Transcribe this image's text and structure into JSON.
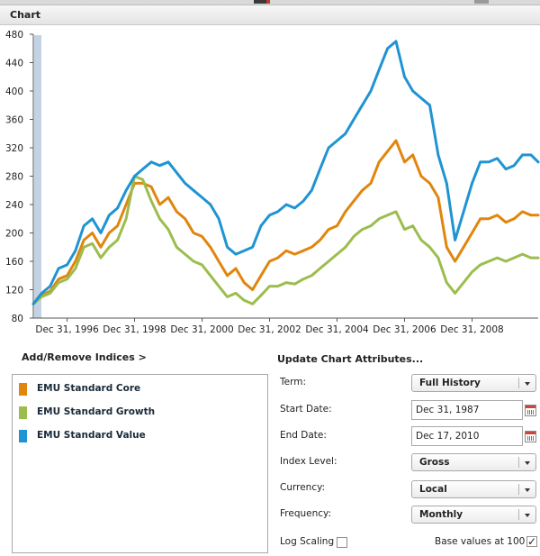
{
  "panel": {
    "title": "Chart"
  },
  "chart_data": {
    "type": "line",
    "ylim": [
      80,
      480
    ],
    "yticks": [
      80,
      120,
      160,
      200,
      240,
      280,
      320,
      360,
      400,
      440,
      480
    ],
    "xlim": [
      "1995-12-31",
      "2010-12-17"
    ],
    "xticks": [
      "Dec 31, 1996",
      "Dec 31, 1998",
      "Dec 31, 2000",
      "Dec 31, 2002",
      "Dec 31, 2004",
      "Dec 31, 2006",
      "Dec 31, 2008"
    ],
    "xtick_dates": [
      "1996-12-31",
      "1998-12-31",
      "2000-12-31",
      "2002-12-31",
      "2004-12-31",
      "2006-12-31",
      "2008-12-31"
    ],
    "grid": false,
    "dates": [
      "1995-12-31",
      "1996-03-31",
      "1996-06-30",
      "1996-09-30",
      "1996-12-31",
      "1997-03-31",
      "1997-06-30",
      "1997-09-30",
      "1997-12-31",
      "1998-03-31",
      "1998-06-30",
      "1998-09-30",
      "1998-12-31",
      "1999-03-31",
      "1999-06-30",
      "1999-09-30",
      "1999-12-31",
      "2000-03-31",
      "2000-06-30",
      "2000-09-30",
      "2000-12-31",
      "2001-03-31",
      "2001-06-30",
      "2001-09-30",
      "2001-12-31",
      "2002-03-31",
      "2002-06-30",
      "2002-09-30",
      "2002-12-31",
      "2003-03-31",
      "2003-06-30",
      "2003-09-30",
      "2003-12-31",
      "2004-03-31",
      "2004-06-30",
      "2004-09-30",
      "2004-12-31",
      "2005-03-31",
      "2005-06-30",
      "2005-09-30",
      "2005-12-31",
      "2006-03-31",
      "2006-06-30",
      "2006-09-30",
      "2006-12-31",
      "2007-03-31",
      "2007-06-30",
      "2007-09-30",
      "2007-12-31",
      "2008-03-31",
      "2008-06-30",
      "2008-09-30",
      "2008-12-31",
      "2009-03-31",
      "2009-06-30",
      "2009-09-30",
      "2009-12-31",
      "2010-03-31",
      "2010-06-30",
      "2010-09-30",
      "2010-12-17"
    ],
    "series": [
      {
        "name": "EMU Standard Core",
        "color": "#e0860e",
        "values": [
          100,
          112,
          118,
          135,
          140,
          160,
          190,
          200,
          180,
          200,
          210,
          240,
          270,
          270,
          265,
          240,
          250,
          230,
          220,
          200,
          195,
          180,
          160,
          140,
          150,
          130,
          120,
          140,
          160,
          165,
          175,
          170,
          175,
          180,
          190,
          205,
          210,
          230,
          245,
          260,
          270,
          300,
          315,
          330,
          300,
          310,
          280,
          270,
          250,
          180,
          160,
          180,
          200,
          220,
          220,
          225,
          215,
          220,
          230,
          225,
          225
        ]
      },
      {
        "name": "EMU Standard Growth",
        "color": "#9cbd4e",
        "values": [
          100,
          110,
          115,
          130,
          135,
          150,
          180,
          185,
          165,
          180,
          190,
          220,
          280,
          275,
          245,
          220,
          205,
          180,
          170,
          160,
          155,
          140,
          125,
          110,
          115,
          105,
          100,
          112,
          125,
          125,
          130,
          128,
          135,
          140,
          150,
          160,
          170,
          180,
          195,
          205,
          210,
          220,
          225,
          230,
          205,
          210,
          190,
          180,
          165,
          130,
          115,
          130,
          145,
          155,
          160,
          165,
          160,
          165,
          170,
          165,
          165
        ]
      },
      {
        "name": "EMU Standard Value",
        "color": "#1f94d2",
        "values": [
          100,
          115,
          125,
          150,
          155,
          175,
          210,
          220,
          200,
          225,
          235,
          260,
          280,
          290,
          300,
          295,
          300,
          285,
          270,
          260,
          250,
          240,
          220,
          180,
          170,
          175,
          180,
          210,
          225,
          230,
          240,
          235,
          245,
          260,
          290,
          320,
          330,
          340,
          360,
          380,
          400,
          430,
          460,
          470,
          420,
          400,
          390,
          380,
          310,
          270,
          190,
          230,
          270,
          300,
          300,
          305,
          290,
          295,
          310,
          310,
          300
        ]
      }
    ]
  },
  "controls": {
    "add_remove": "Add/Remove Indices >",
    "update_title": "Update Chart Attributes...",
    "term_label": "Term:",
    "term_value": "Full History",
    "start_label": "Start Date:",
    "start_value": "Dec 31, 1987",
    "end_label": "End Date:",
    "end_value": "Dec 17, 2010",
    "index_level_label": "Index Level:",
    "index_level_value": "Gross",
    "currency_label": "Currency:",
    "currency_value": "Local",
    "frequency_label": "Frequency:",
    "frequency_value": "Monthly",
    "log_label": "Log Scaling",
    "log_checked": false,
    "base_label": "Base values at 100",
    "base_checked": true,
    "check_mark": "✓"
  }
}
